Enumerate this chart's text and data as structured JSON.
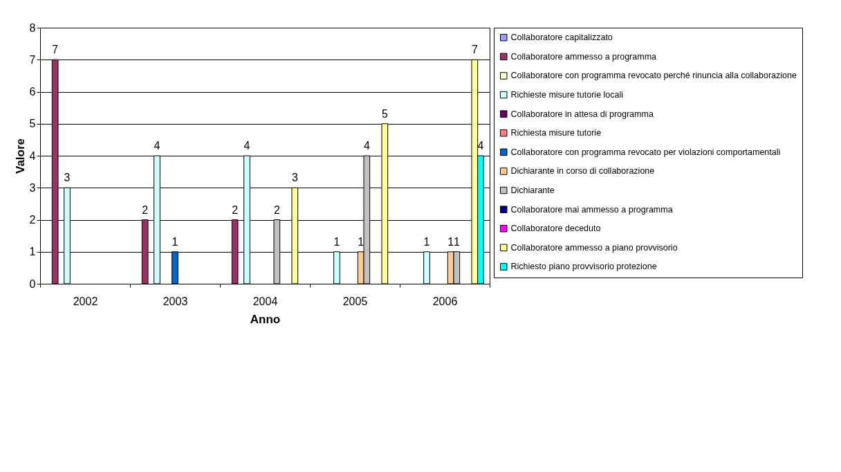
{
  "chart_data": {
    "type": "bar",
    "xlabel": "Anno",
    "ylabel": "Valore",
    "categories": [
      "2002",
      "2003",
      "2004",
      "2005",
      "2006"
    ],
    "series": [
      {
        "name": "Collaboratore capitalizzato",
        "color": "#9999ff",
        "values": [
          null,
          null,
          null,
          null,
          null
        ]
      },
      {
        "name": "Collaboratore ammesso a programma",
        "color": "#993366",
        "values": [
          7,
          2,
          2,
          null,
          null
        ]
      },
      {
        "name": "Collaboratore con programma revocato perché rinuncia alla collaborazione",
        "color": "#ffffcc",
        "values": [
          null,
          null,
          null,
          null,
          null
        ]
      },
      {
        "name": "Richieste misure tutorie locali",
        "color": "#ccffff",
        "values": [
          3,
          4,
          4,
          1,
          1
        ]
      },
      {
        "name": "Collaboratore in attesa di programma",
        "color": "#660066",
        "values": [
          null,
          null,
          null,
          null,
          null
        ]
      },
      {
        "name": "Richiesta misure tutorie",
        "color": "#ff8080",
        "values": [
          null,
          null,
          null,
          null,
          null
        ]
      },
      {
        "name": "Collaboratore con programma revocato per violazioni comportamentali",
        "color": "#0066cc",
        "values": [
          null,
          1,
          null,
          null,
          null
        ]
      },
      {
        "name": "Dichiarante in corso di collaborazione",
        "color": "#ffcc99",
        "values": [
          null,
          null,
          null,
          1,
          1
        ]
      },
      {
        "name": "Dichiarante",
        "color": "#c0c0c0",
        "values": [
          null,
          null,
          2,
          4,
          1
        ]
      },
      {
        "name": "Collaboratore mai ammesso a programma",
        "color": "#000080",
        "values": [
          null,
          null,
          null,
          null,
          null
        ]
      },
      {
        "name": "Collaboratore deceduto",
        "color": "#ff00ff",
        "values": [
          null,
          null,
          null,
          null,
          null
        ]
      },
      {
        "name": "Collaboratore ammesso a piano provvisorio",
        "color": "#ffff99",
        "values": [
          null,
          null,
          3,
          5,
          7
        ]
      },
      {
        "name": "Richiesto piano provvisorio protezione",
        "color": "#00ffff",
        "values": [
          null,
          null,
          null,
          null,
          4
        ]
      }
    ],
    "ylim": [
      0,
      8
    ],
    "yticks": [
      0,
      1,
      2,
      3,
      4,
      5,
      6,
      7,
      8
    ],
    "grid": "y",
    "legend": "right",
    "data_labels": true
  }
}
